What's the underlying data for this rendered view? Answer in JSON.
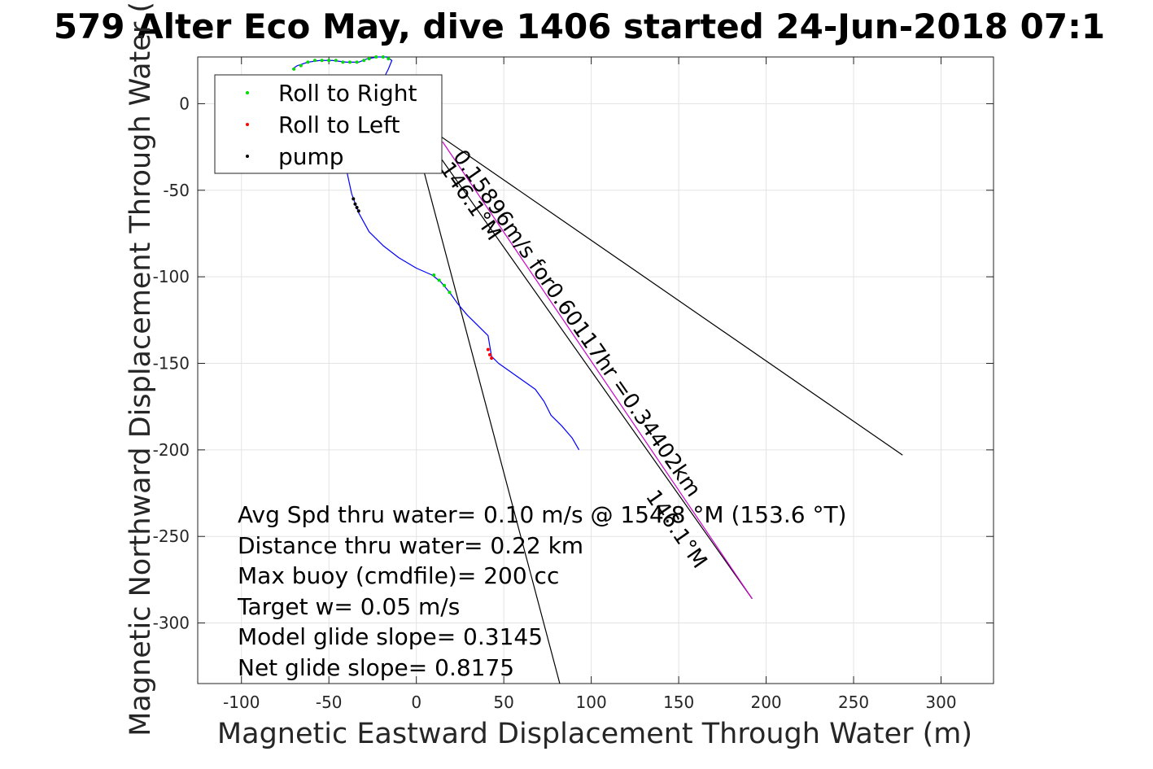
{
  "chart_data": {
    "type": "scatter",
    "title": "579 Alter Eco May, dive 1406 started 24-Jun-2018 07:1",
    "xlabel": "Magnetic Eastward Displacement Through Water (m)",
    "ylabel": "Magnetic Northward Displacement Through Water (",
    "xlim": [
      -125,
      330
    ],
    "ylim": [
      -335,
      27
    ],
    "xticks": [
      -100,
      -50,
      0,
      50,
      100,
      150,
      200,
      250,
      300
    ],
    "yticks": [
      0,
      -50,
      -100,
      -150,
      -200,
      -250,
      -300
    ],
    "xtick_labels": [
      "-100",
      "-50",
      "0",
      "50",
      "100",
      "150",
      "200",
      "250",
      "300"
    ],
    "ytick_labels": [
      "0",
      "-50",
      "-100",
      "-150",
      "-200",
      "-250",
      "-300"
    ],
    "grid": true,
    "legend_position": "top-left",
    "legend": [
      {
        "label": "Roll to Right",
        "color": "#00dd00"
      },
      {
        "label": "Roll to Left",
        "color": "#ff0000"
      },
      {
        "label": "pump",
        "color": "#000000"
      }
    ],
    "track": {
      "color": "#0000ff",
      "points": [
        [
          -71,
          20
        ],
        [
          -68,
          22
        ],
        [
          -62,
          24
        ],
        [
          -55,
          25
        ],
        [
          -48,
          25
        ],
        [
          -40,
          24
        ],
        [
          -33,
          24
        ],
        [
          -28,
          26
        ],
        [
          -22,
          27
        ],
        [
          -17,
          27
        ],
        [
          -14,
          25
        ],
        [
          -16,
          20
        ],
        [
          -20,
          12
        ],
        [
          -24,
          5
        ],
        [
          -29,
          -2
        ],
        [
          -33,
          -12
        ],
        [
          -37,
          -25
        ],
        [
          -40,
          -38
        ],
        [
          -37,
          -52
        ],
        [
          -33,
          -63
        ],
        [
          -27,
          -74
        ],
        [
          -19,
          -82
        ],
        [
          -10,
          -89
        ],
        [
          0,
          -95
        ],
        [
          9,
          -99
        ],
        [
          14,
          -103
        ],
        [
          19,
          -109
        ],
        [
          24,
          -116
        ],
        [
          29,
          -122
        ],
        [
          35,
          -128
        ],
        [
          41,
          -134
        ],
        [
          42,
          -140
        ],
        [
          43,
          -146
        ],
        [
          47,
          -150
        ],
        [
          54,
          -155
        ],
        [
          61,
          -160
        ],
        [
          68,
          -165
        ],
        [
          73,
          -172
        ],
        [
          77,
          -180
        ],
        [
          83,
          -186
        ],
        [
          89,
          -193
        ],
        [
          93,
          -200
        ]
      ]
    },
    "roll_right_points": [
      [
        -70,
        20
      ],
      [
        -66,
        22
      ],
      [
        -62,
        24
      ],
      [
        -58,
        25
      ],
      [
        -54,
        25
      ],
      [
        -50,
        25
      ],
      [
        -46,
        25
      ],
      [
        -42,
        24
      ],
      [
        -38,
        24
      ],
      [
        -34,
        24
      ],
      [
        -30,
        25
      ],
      [
        -27,
        26
      ],
      [
        -23,
        27
      ],
      [
        -19,
        27
      ],
      [
        -16,
        26
      ],
      [
        10,
        -99
      ],
      [
        13,
        -102
      ],
      [
        16,
        -105
      ],
      [
        19,
        -109
      ]
    ],
    "roll_left_points": [
      [
        41,
        -142
      ],
      [
        42,
        -145
      ],
      [
        43,
        -147
      ]
    ],
    "pump_points": [
      [
        -36,
        -55
      ],
      [
        -35,
        -58
      ],
      [
        -34,
        -60
      ],
      [
        -33,
        -62
      ]
    ],
    "lines": [
      {
        "name": "",
        "color": "#000000",
        "points": [
          [
            -6,
            -5
          ],
          [
            278,
            -203
          ]
        ]
      },
      {
        "name": "",
        "color": "#000000",
        "points": [
          [
            -2,
            -15
          ],
          [
            82,
            -335
          ]
        ]
      },
      {
        "name": "",
        "color": "#000000",
        "points": [
          [
            -8,
            0
          ],
          [
            192,
            -286
          ]
        ]
      },
      {
        "name": "",
        "color": "#cc00cc",
        "points": [
          [
            15,
            -22
          ],
          [
            192,
            -286
          ]
        ]
      }
    ],
    "annotations": {
      "line_top": "0.15896m/s for0.60117hr =0.34402km",
      "heading_upper": "146.1°M",
      "heading_lower": "146.1°M",
      "stats": [
        "Avg Spd thru water=  0.10 m/s @ 154.8 °M (153.6 °T)",
        "Distance thru water=  0.22 km",
        "Max buoy (cmdfile)= 200 cc",
        "Target w= 0.05 m/s",
        "Model glide slope= 0.3145",
        "Net glide slope= 0.8175"
      ]
    }
  }
}
